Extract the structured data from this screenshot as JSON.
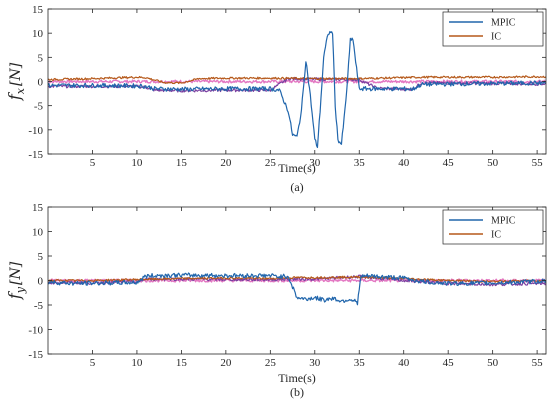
{
  "chart_data": [
    {
      "id": "a",
      "type": "line",
      "caption": "(a)",
      "xlabel": "Time(s)",
      "ylabel": {
        "symbol": "f",
        "subscript": "x",
        "unit": "[N]"
      },
      "xlim": [
        0,
        56
      ],
      "ylim": [
        -15,
        15
      ],
      "xticks": [
        5,
        10,
        15,
        20,
        25,
        30,
        35,
        40,
        45,
        50,
        55
      ],
      "yticks": [
        -15,
        -10,
        -5,
        0,
        5,
        10,
        15
      ],
      "legend": {
        "placement": "top-right",
        "entries": [
          "MPIC",
          "IC"
        ]
      },
      "series": [
        {
          "name": "MPIC",
          "color": "#2166ac",
          "x": [
            0,
            5,
            10,
            11,
            12,
            15,
            20,
            25,
            26,
            27,
            27.5,
            28,
            28.5,
            29,
            29.5,
            30,
            30.3,
            30.6,
            31,
            31.5,
            32,
            32.3,
            32.6,
            33,
            33.5,
            34,
            34.3,
            34.6,
            35,
            35.3,
            36,
            40,
            41,
            42,
            45,
            50,
            55,
            56
          ],
          "y": [
            -0.8,
            -0.8,
            -0.9,
            -1.0,
            -1.5,
            -1.6,
            -1.5,
            -1.5,
            -1.8,
            -6,
            -11,
            -11.5,
            -6,
            4.5,
            -3,
            -12,
            -13.5,
            -6,
            5,
            10,
            10.2,
            -5,
            -12,
            -13,
            -4,
            8.5,
            8.8,
            4,
            -1.5,
            -1.5,
            -1.5,
            -1.5,
            -1.6,
            -0.6,
            -0.5,
            -0.4,
            -0.3,
            -0.3
          ]
        },
        {
          "name": "IC",
          "color": "#b5591a",
          "x": [
            0,
            5,
            10,
            11,
            13,
            15,
            17,
            20,
            25,
            30,
            35,
            40,
            42,
            45,
            50,
            55,
            56
          ],
          "y": [
            0.4,
            0.6,
            0.9,
            0.8,
            -0.2,
            -0.3,
            0.6,
            0.7,
            0.7,
            0.6,
            0.6,
            0.8,
            0.9,
            0.9,
            0.9,
            1.0,
            1.0
          ]
        },
        {
          "name": "",
          "color": "#7b3fa0",
          "x": [
            0,
            5,
            10,
            11,
            12,
            15,
            20,
            25,
            27,
            30,
            35,
            37,
            40,
            41,
            42,
            45,
            50,
            55,
            56
          ],
          "y": [
            -1.0,
            -1.0,
            -1.0,
            -1.2,
            -1.8,
            -1.9,
            -1.8,
            -1.8,
            0.6,
            0.5,
            0.4,
            -1.4,
            -1.6,
            -1.6,
            -0.3,
            -0.3,
            -0.4,
            -0.5,
            -0.5
          ]
        },
        {
          "name": "",
          "color": "#e377c2",
          "x": [
            0,
            10,
            20,
            30,
            40,
            50,
            56
          ],
          "y": [
            0,
            0,
            0,
            0,
            0,
            0,
            0
          ]
        }
      ]
    },
    {
      "id": "b",
      "type": "line",
      "caption": "(b)",
      "xlabel": "Time(s)",
      "ylabel": {
        "symbol": "f",
        "subscript": "y",
        "unit": "[N]"
      },
      "xlim": [
        0,
        56
      ],
      "ylim": [
        -15,
        15
      ],
      "xticks": [
        5,
        10,
        15,
        20,
        25,
        30,
        35,
        40,
        45,
        50,
        55
      ],
      "yticks": [
        -15,
        -10,
        -5,
        0,
        5,
        10,
        15
      ],
      "legend": {
        "placement": "top-right",
        "entries": [
          "MPIC",
          "IC"
        ]
      },
      "series": [
        {
          "name": "MPIC",
          "color": "#2166ac",
          "x": [
            0,
            3,
            6,
            10,
            11,
            12,
            15,
            20,
            25,
            26,
            27,
            28,
            29,
            30,
            31,
            32,
            33,
            34,
            34.8,
            35.2,
            36,
            40,
            42,
            45,
            50,
            55,
            56
          ],
          "y": [
            -0.3,
            -0.6,
            -0.5,
            -0.4,
            0.9,
            1.0,
            1.1,
            1.0,
            1.0,
            0.8,
            0.9,
            -3.5,
            -3.8,
            -3.5,
            -4.0,
            -3.6,
            -4.2,
            -3.8,
            -4.5,
            0.8,
            0.9,
            0.5,
            -0.2,
            -0.6,
            -0.5,
            -0.2,
            0.0
          ]
        },
        {
          "name": "IC",
          "color": "#b5591a",
          "x": [
            0,
            5,
            10,
            15,
            20,
            25,
            28,
            30,
            35,
            40,
            45,
            50,
            55,
            56
          ],
          "y": [
            0.0,
            0.0,
            0.2,
            0.4,
            0.5,
            0.4,
            0.6,
            0.6,
            0.7,
            0.4,
            0.0,
            -0.2,
            0.0,
            0.0
          ]
        },
        {
          "name": "",
          "color": "#7b3fa0",
          "x": [
            0,
            5,
            10,
            11,
            15,
            20,
            25,
            28,
            30,
            35,
            40,
            45,
            50,
            55,
            56
          ],
          "y": [
            -0.4,
            -0.5,
            -0.3,
            0.3,
            0.3,
            0.2,
            0.2,
            0.3,
            0.3,
            0.8,
            0.0,
            -0.6,
            -0.8,
            -0.6,
            -0.6
          ]
        },
        {
          "name": "",
          "color": "#e377c2",
          "x": [
            0,
            10,
            20,
            30,
            40,
            50,
            56
          ],
          "y": [
            0,
            0,
            0,
            0,
            0,
            0,
            0
          ]
        }
      ]
    }
  ]
}
